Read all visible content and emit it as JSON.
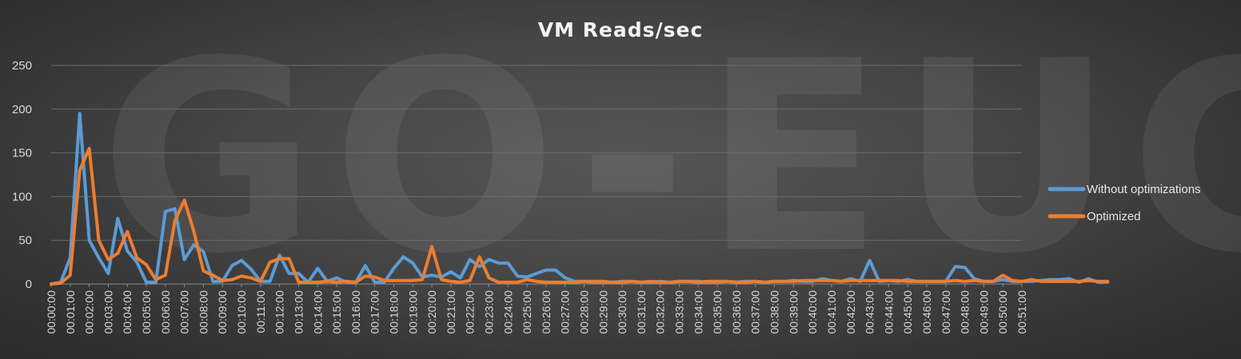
{
  "watermark": "GO-EUC",
  "chart_data": {
    "type": "line",
    "title": "VM Reads/sec",
    "xlabel": "",
    "ylabel": "",
    "ylim": [
      0,
      250
    ],
    "yticks": [
      0,
      50,
      100,
      150,
      200,
      250
    ],
    "x_tick_labels": [
      "00:00:00",
      "00:01:00",
      "00:02:00",
      "00:03:00",
      "00:04:00",
      "00:05:00",
      "00:06:00",
      "00:07:00",
      "00:08:00",
      "00:09:00",
      "00:10:00",
      "00:11:00",
      "00:12:00",
      "00:13:00",
      "00:14:00",
      "00:15:00",
      "00:16:00",
      "00:17:00",
      "00:18:00",
      "00:19:00",
      "00:20:00",
      "00:21:00",
      "00:22:00",
      "00:23:00",
      "00:24:00",
      "00:25:00",
      "00:26:00",
      "00:27:00",
      "00:28:00",
      "00:29:00",
      "00:30:00",
      "00:31:00",
      "00:32:00",
      "00:33:00",
      "00:34:00",
      "00:35:00",
      "00:36:00",
      "00:37:00",
      "00:38:00",
      "00:39:00",
      "00:40:00",
      "00:41:00",
      "00:42:00",
      "00:43:00",
      "00:44:00",
      "00:45:00",
      "00:46:00",
      "00:47:00",
      "00:48:00",
      "00:49:00",
      "00:50:00",
      "00:51:00"
    ],
    "x_minutes_per_point": 0.5,
    "grid": "horizontal",
    "legend_position": "right",
    "series": [
      {
        "name": "Without optimizations",
        "color": "#5b9bd5",
        "values": [
          0,
          2,
          30,
          195,
          50,
          30,
          12,
          75,
          38,
          25,
          2,
          2,
          83,
          86,
          28,
          45,
          37,
          3,
          3,
          21,
          27,
          17,
          3,
          3,
          33,
          12,
          12,
          2,
          18,
          3,
          7,
          2,
          2,
          21,
          2,
          2,
          18,
          31,
          24,
          8,
          10,
          8,
          14,
          7,
          28,
          20,
          28,
          24,
          24,
          9,
          8,
          12,
          16,
          16,
          7,
          3,
          3,
          2,
          2,
          2,
          3,
          3,
          2,
          2,
          3,
          2,
          3,
          3,
          3,
          2,
          2,
          3,
          2,
          3,
          3,
          2,
          3,
          3,
          4,
          3,
          3,
          6,
          4,
          3,
          6,
          3,
          27,
          3,
          4,
          3,
          5,
          3,
          3,
          3,
          3,
          20,
          19,
          6,
          3,
          3,
          5,
          3,
          3,
          3,
          4,
          5,
          5,
          6,
          2,
          6,
          2,
          2
        ]
      },
      {
        "name": "Optimized",
        "color": "#ed7d31",
        "values": [
          0,
          1,
          10,
          130,
          155,
          50,
          28,
          35,
          60,
          30,
          22,
          5,
          10,
          72,
          96,
          60,
          15,
          10,
          4,
          5,
          9,
          7,
          3,
          25,
          29,
          29,
          2,
          2,
          2,
          3,
          2,
          3,
          2,
          9,
          8,
          4,
          4,
          4,
          4,
          5,
          43,
          5,
          3,
          2,
          4,
          31,
          7,
          2,
          2,
          2,
          5,
          3,
          2,
          2,
          2,
          2,
          3,
          3,
          3,
          2,
          2,
          3,
          2,
          3,
          2,
          2,
          3,
          3,
          2,
          3,
          3,
          3,
          2,
          2,
          3,
          2,
          3,
          3,
          3,
          4,
          4,
          4,
          4,
          3,
          4,
          4,
          4,
          4,
          4,
          4,
          3,
          3,
          3,
          3,
          3,
          4,
          3,
          4,
          3,
          3,
          10,
          4,
          3,
          5,
          3,
          3,
          3,
          3,
          3,
          4,
          3,
          3
        ]
      }
    ]
  }
}
